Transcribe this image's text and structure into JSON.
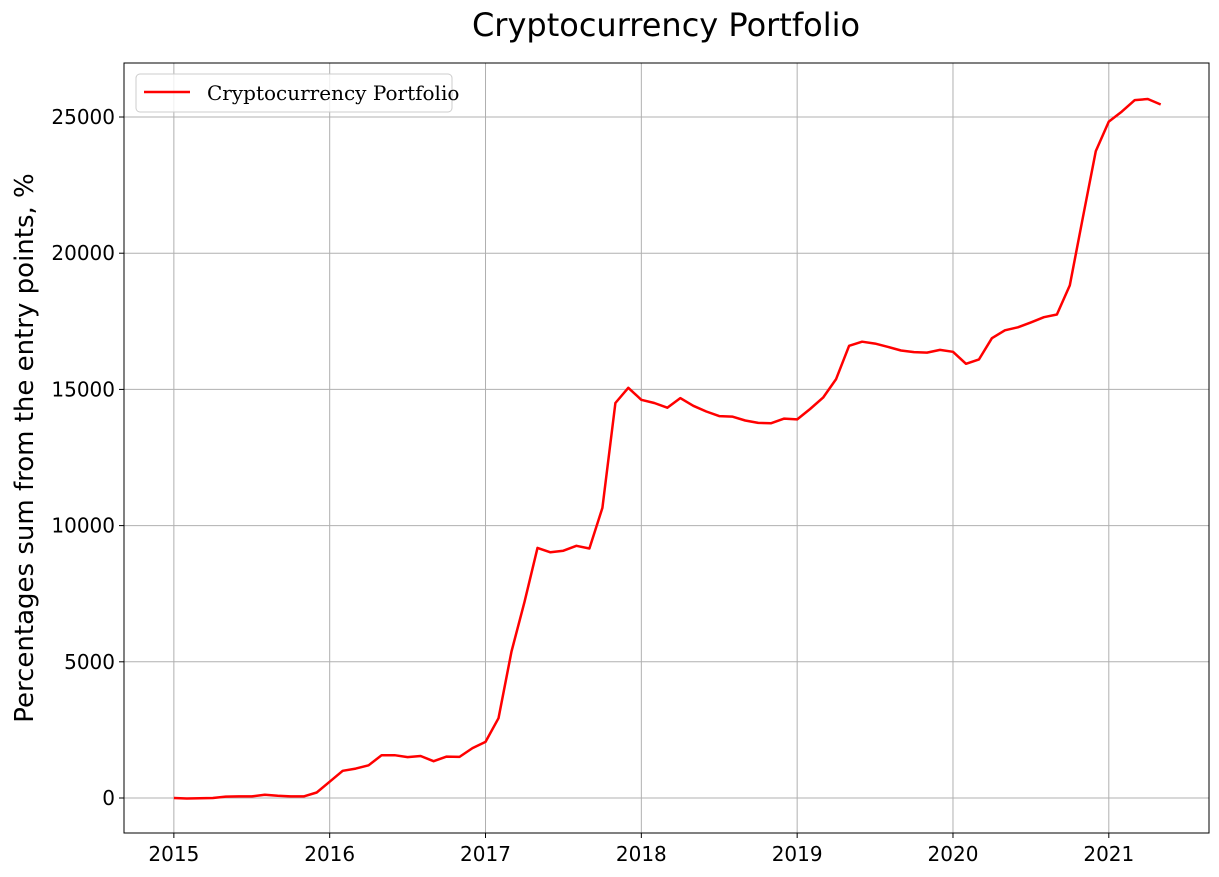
{
  "chart_data": {
    "type": "line",
    "title": "Cryptocurrency Portfolio",
    "xlabel": "",
    "ylabel": "Percentages sum from the entry points, %",
    "xlim": [
      2014.68,
      2021.643
    ],
    "ylim": [
      -1285,
      26983
    ],
    "grid": true,
    "legend_placement": "top-left",
    "x_ticks": [
      2015,
      2016,
      2017,
      2018,
      2019,
      2020,
      2021
    ],
    "x_tick_labels": [
      "2015",
      "2016",
      "2017",
      "2018",
      "2019",
      "2020",
      "2021"
    ],
    "y_ticks": [
      0,
      5000,
      10000,
      15000,
      20000,
      25000
    ],
    "y_tick_labels": [
      "0",
      "5000",
      "10000",
      "15000",
      "20000",
      "25000"
    ],
    "series": [
      {
        "name": "Cryptocurrency Portfolio",
        "color": "#ff0000",
        "start": "2015-01",
        "frequency": "monthly",
        "values": [
          0,
          -20,
          -10,
          0,
          50,
          60,
          60,
          120,
          80,
          60,
          60,
          200,
          600,
          1000,
          1080,
          1200,
          1570,
          1570,
          1500,
          1540,
          1350,
          1520,
          1510,
          1830,
          2060,
          2930,
          5380,
          7200,
          9180,
          9020,
          9080,
          9260,
          9160,
          10650,
          14500,
          15060,
          14620,
          14500,
          14330,
          14680,
          14400,
          14190,
          14020,
          14000,
          13860,
          13770,
          13760,
          13930,
          13900,
          14280,
          14700,
          15380,
          16600,
          16750,
          16680,
          16560,
          16430,
          16370,
          16350,
          16450,
          16380,
          15940,
          16100,
          16880,
          17170,
          17280,
          17460,
          17650,
          17750,
          18820,
          21300,
          23750,
          24830,
          25200,
          25620,
          25660,
          25460
        ]
      }
    ]
  }
}
